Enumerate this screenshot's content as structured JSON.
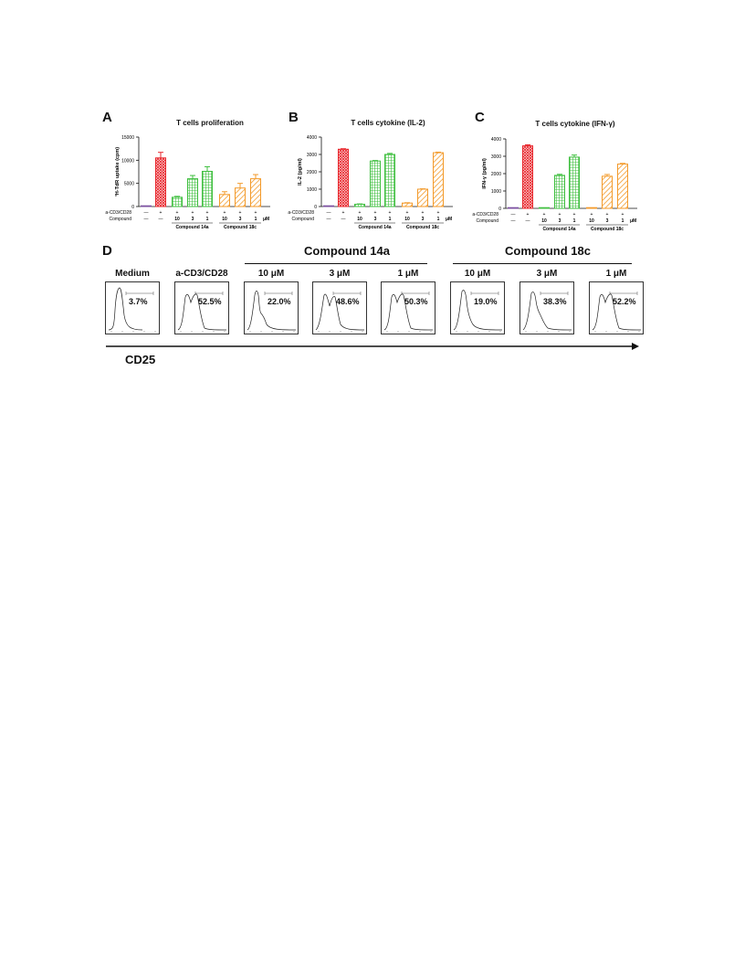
{
  "panel_letters": {
    "A": "A",
    "B": "B",
    "C": "C",
    "D": "D"
  },
  "row_labels": {
    "stim": "a-CD3/CD28",
    "compound": "Compound",
    "unit": "μM"
  },
  "stim_values": [
    "—",
    "+",
    "+",
    "+",
    "+",
    "+",
    "+",
    "+"
  ],
  "compound_values": [
    "—",
    "—",
    "10",
    "3",
    "1",
    "10",
    "3",
    "1"
  ],
  "group_labels": {
    "g14a": "Compound 14a",
    "g18c": "Compound 18c"
  },
  "colors": {
    "medium": "#7b4fa0",
    "stim": "#e8252b",
    "c14a": "#3fbf3f",
    "c18c": "#f39a2a"
  },
  "chart_data": [
    {
      "type": "bar",
      "title": "T cells proliferation",
      "ylabel": "³H-TdR uptake (cpm)",
      "ylim": [
        0,
        15000
      ],
      "yticks": [
        "0",
        "5000",
        "10000",
        "15000"
      ],
      "categories": [
        "Medium",
        "a-CD3/CD28",
        "14a 10 μM",
        "14a 3 μM",
        "14a 1 μM",
        "18c 10 μM",
        "18c 3 μM",
        "18c 1 μM"
      ],
      "values": [
        100,
        10500,
        2000,
        6000,
        7600,
        2600,
        4000,
        6000
      ],
      "errors": [
        0,
        1200,
        200,
        700,
        1000,
        600,
        1000,
        900
      ]
    },
    {
      "type": "bar",
      "title": "T cells cytokine (IL-2)",
      "ylabel": "IL-2 (pg/ml)",
      "ylim": [
        0,
        4000
      ],
      "yticks": [
        "0",
        "1000",
        "2000",
        "3000",
        "4000"
      ],
      "categories": [
        "Medium",
        "a-CD3/CD28",
        "14a 10 μM",
        "14a 3 μM",
        "14a 1 μM",
        "18c 10 μM",
        "18c 3 μM",
        "18c 1 μM"
      ],
      "values": [
        0,
        3300,
        130,
        2620,
        3000,
        200,
        1000,
        3100
      ],
      "errors": [
        0,
        30,
        20,
        30,
        60,
        20,
        20,
        30
      ]
    },
    {
      "type": "bar",
      "title": "T cells cytokine (IFN-γ)",
      "ylabel": "IFN-γ (pg/ml)",
      "ylim": [
        0,
        4000
      ],
      "yticks": [
        "0",
        "1000",
        "2000",
        "3000",
        "4000"
      ],
      "categories": [
        "Medium",
        "a-CD3/CD28",
        "14a 10 μM",
        "14a 3 μM",
        "14a 1 μM",
        "18c 10 μM",
        "18c 3 μM",
        "18c 1 μM"
      ],
      "values": [
        0,
        3600,
        0,
        1900,
        2950,
        0,
        1850,
        2550
      ],
      "errors": [
        0,
        60,
        0,
        60,
        120,
        0,
        100,
        40
      ]
    }
  ],
  "flow": {
    "axis_label": "CD25",
    "group_14a": "Compound 14a",
    "group_18c": "Compound 18c",
    "panels": [
      {
        "label": "Medium",
        "pct": "3.7%",
        "shape": "single"
      },
      {
        "label": "a-CD3/CD28",
        "pct": "52.5%",
        "shape": "double"
      },
      {
        "label": "10 μM",
        "pct": "22.0%",
        "shape": "shoulder"
      },
      {
        "label": "3 μM",
        "pct": "48.6%",
        "shape": "double-wide"
      },
      {
        "label": "1 μM",
        "pct": "50.3%",
        "shape": "double"
      },
      {
        "label": "10 μM",
        "pct": "19.0%",
        "shape": "single-shoulder"
      },
      {
        "label": "3 μM",
        "pct": "38.3%",
        "shape": "shoulder-wide"
      },
      {
        "label": "1 μM",
        "pct": "52.2%",
        "shape": "double"
      }
    ]
  }
}
